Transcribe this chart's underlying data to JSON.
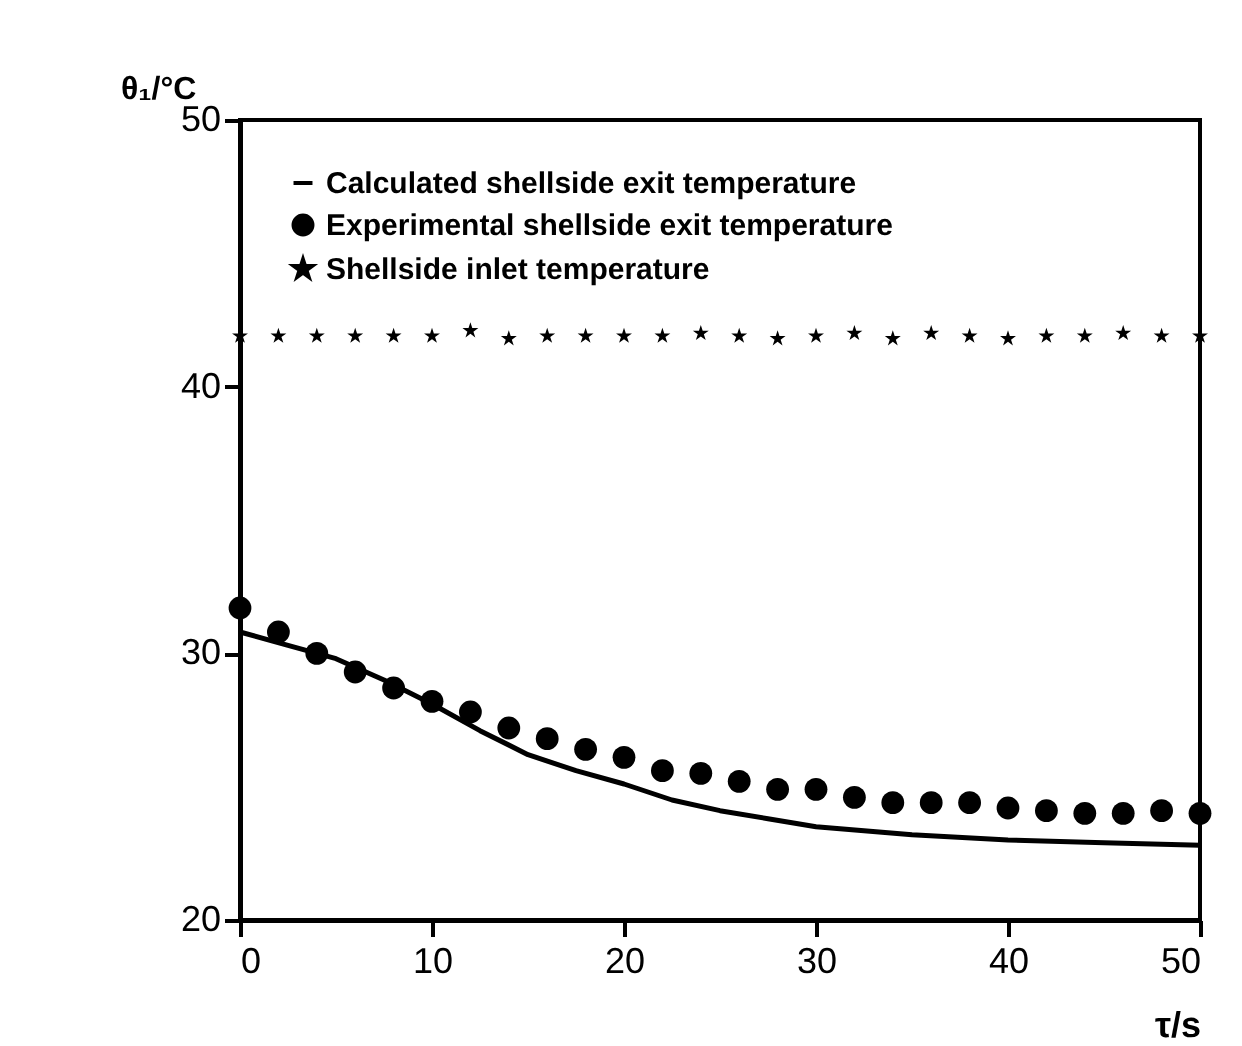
{
  "chart_data": {
    "type": "scatter",
    "xlabel": "τ/s",
    "ylabel": "θ₁/°C",
    "xlim": [
      0,
      50
    ],
    "xticks": [
      0,
      10,
      20,
      30,
      40,
      50
    ],
    "ylim": [
      20,
      50
    ],
    "yticks": [
      20,
      30,
      40,
      50
    ],
    "grid": false,
    "legend": "top left",
    "line_style": "solid",
    "series": [
      {
        "name": "Calculated shellside exit temperature",
        "type": "line",
        "marker": "none",
        "color": "#000000",
        "x": [
          0,
          2.5,
          5,
          7.5,
          10,
          12.5,
          15,
          17.5,
          20,
          22.5,
          25,
          27.5,
          30,
          35,
          40,
          45,
          50
        ],
        "values": [
          30.8,
          30.3,
          29.8,
          29.0,
          28.1,
          27.1,
          26.2,
          25.6,
          25.1,
          24.5,
          24.1,
          23.8,
          23.5,
          23.2,
          23.0,
          22.9,
          22.8
        ]
      },
      {
        "name": "Experimental shellside exit temperature",
        "type": "scatter",
        "marker": "circle",
        "color": "#000000",
        "x": [
          0,
          2,
          4,
          6,
          8,
          10,
          12,
          14,
          16,
          18,
          20,
          22,
          24,
          26,
          28,
          30,
          32,
          34,
          36,
          38,
          40,
          42,
          44,
          46,
          48,
          50
        ],
        "values": [
          31.7,
          30.8,
          30.0,
          29.3,
          28.7,
          28.2,
          27.8,
          27.2,
          26.8,
          26.4,
          26.1,
          25.6,
          25.5,
          25.2,
          24.9,
          24.9,
          24.6,
          24.4,
          24.4,
          24.4,
          24.2,
          24.1,
          24.0,
          24.0,
          24.1,
          24.0
        ]
      },
      {
        "name": "Shellside inlet temperature",
        "type": "scatter",
        "marker": "star",
        "color": "#000000",
        "x": [
          0,
          2,
          4,
          6,
          8,
          10,
          12,
          14,
          16,
          18,
          20,
          22,
          24,
          26,
          28,
          30,
          32,
          34,
          36,
          38,
          40,
          42,
          44,
          46,
          48,
          50
        ],
        "values": [
          41.9,
          41.9,
          41.9,
          41.9,
          41.9,
          41.9,
          42.1,
          41.8,
          41.9,
          41.9,
          41.9,
          41.9,
          42.0,
          41.9,
          41.8,
          41.9,
          42.0,
          41.8,
          42.0,
          41.9,
          41.8,
          41.9,
          41.9,
          42.0,
          41.9,
          41.9
        ]
      }
    ]
  }
}
